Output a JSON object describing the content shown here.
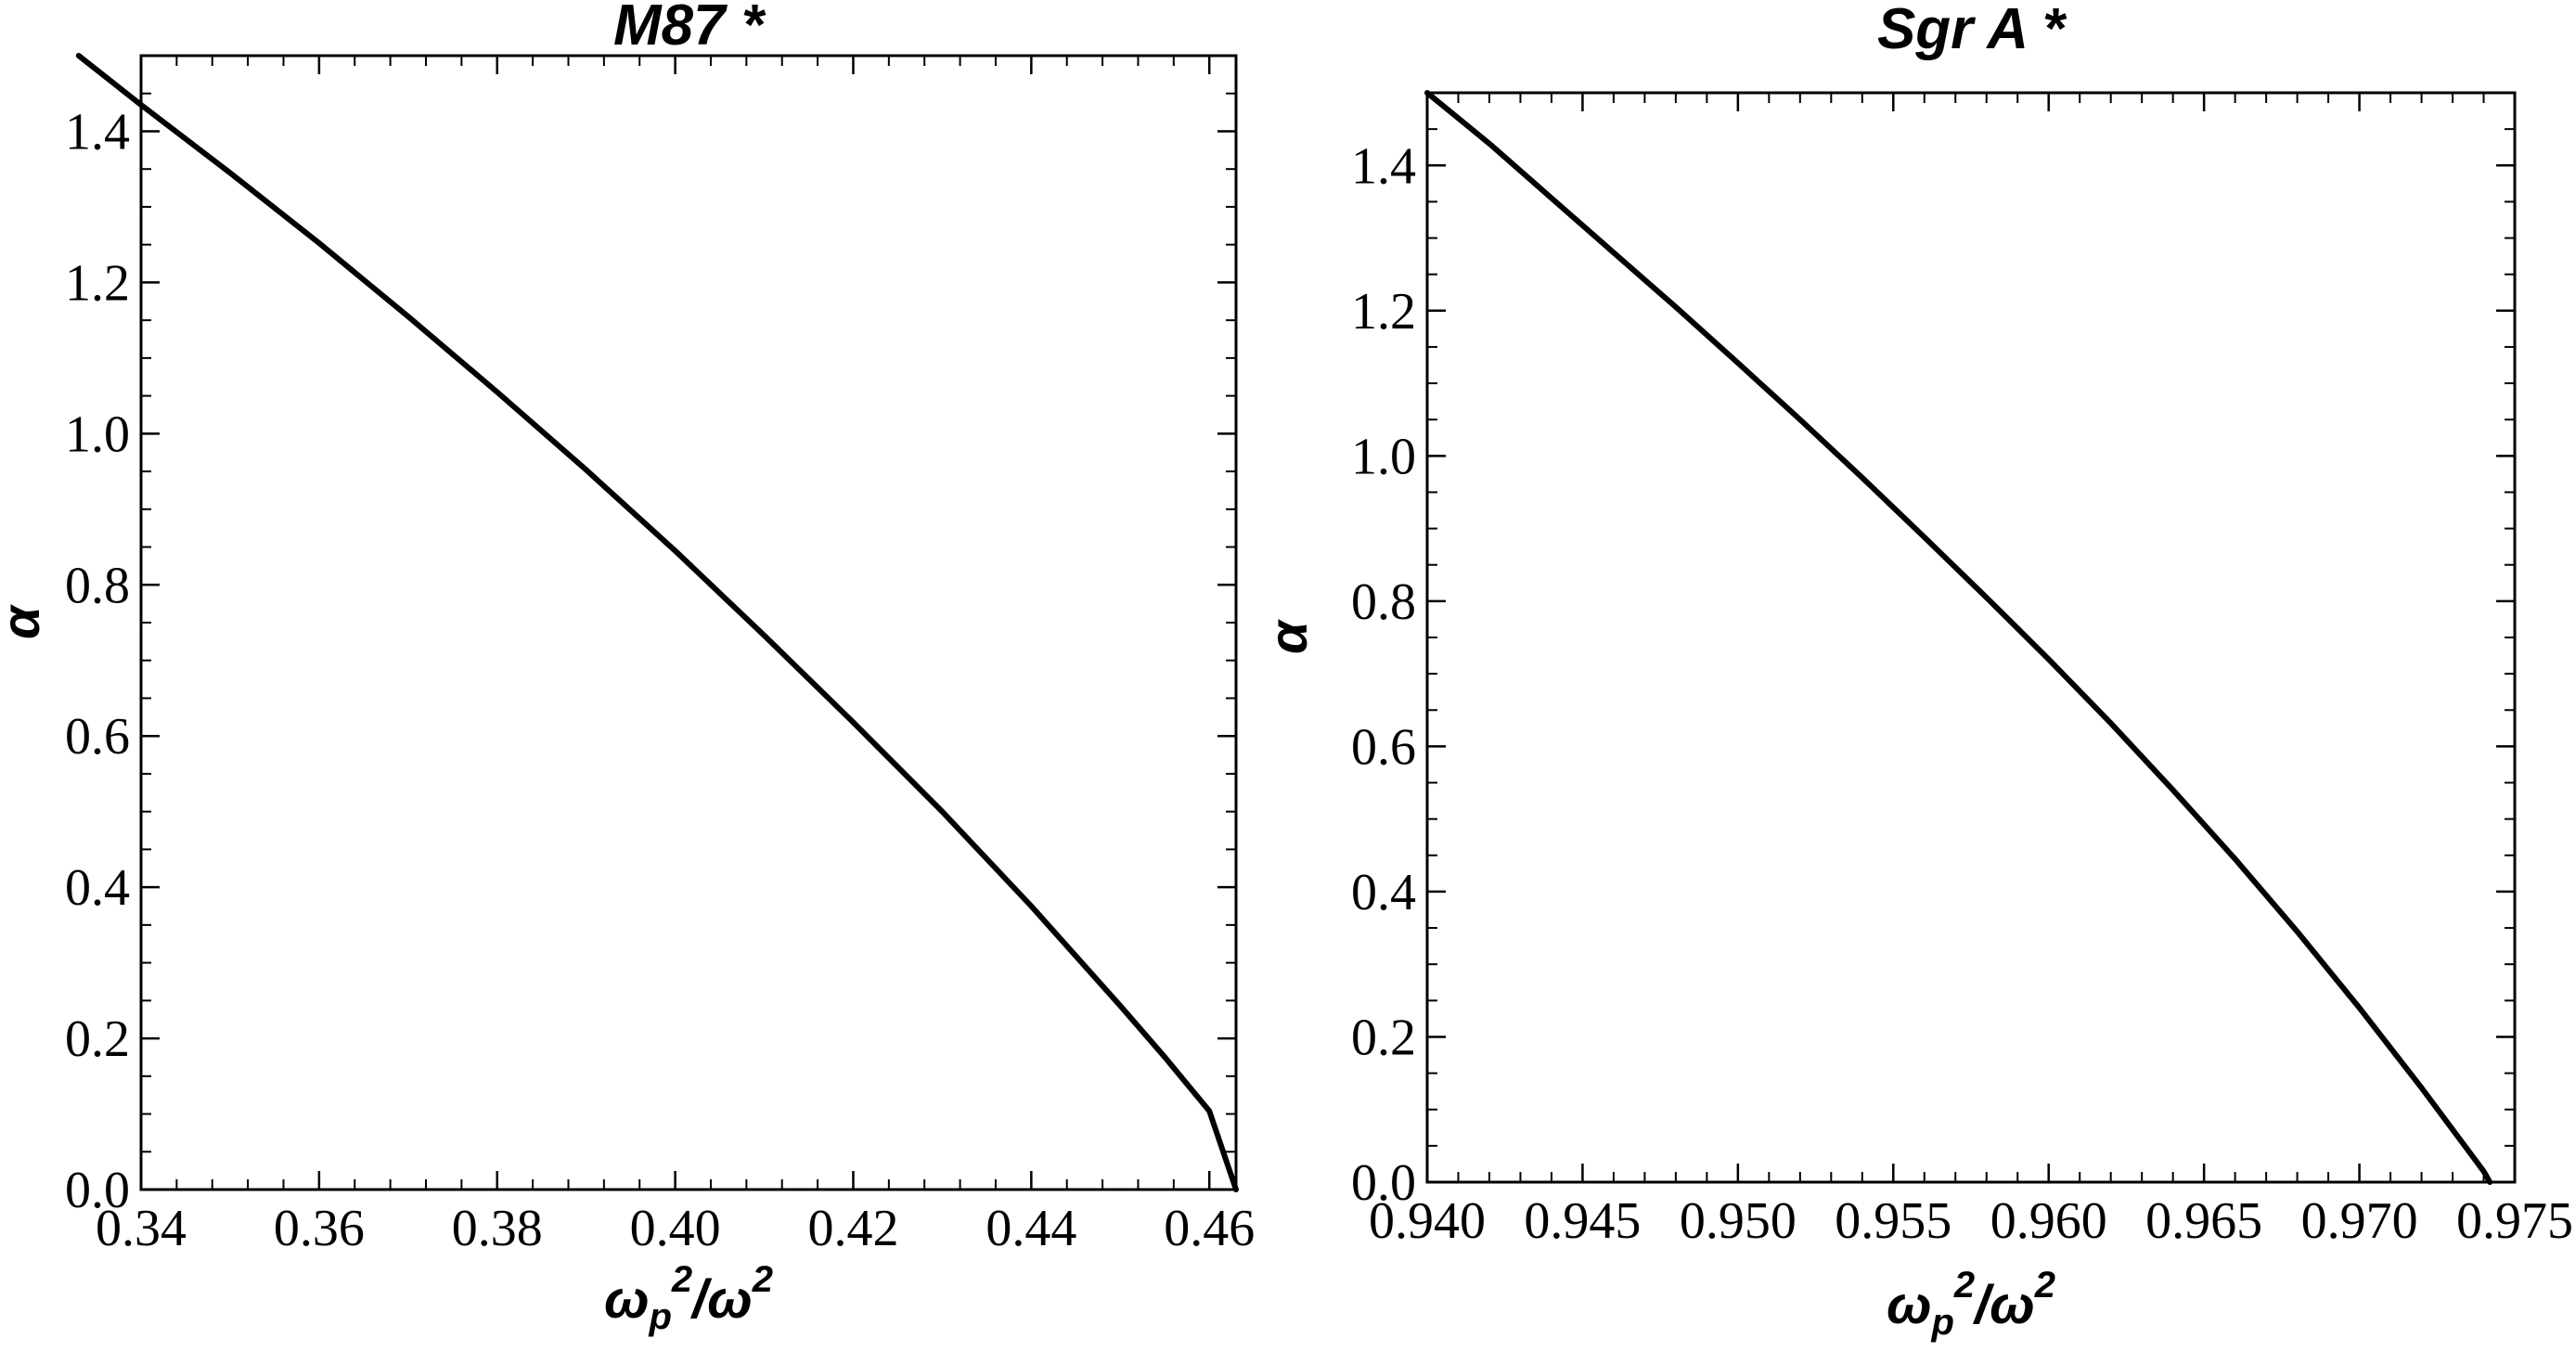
{
  "chart_data": [
    {
      "type": "line",
      "title": "M87 *",
      "xlabel": {
        "base1": "ω",
        "sub1": "p",
        "sup1": "2",
        "slash": "/",
        "base2": "ω",
        "sup2": "2"
      },
      "ylabel": "α",
      "xlim": [
        0.34,
        0.463
      ],
      "ylim": [
        0.0,
        1.5
      ],
      "x_ticks": [
        0.34,
        0.36,
        0.38,
        0.4,
        0.42,
        0.44,
        0.46
      ],
      "x_tick_labels": [
        "0.34",
        "0.36",
        "0.38",
        "0.40",
        "0.42",
        "0.44",
        "0.46"
      ],
      "y_ticks": [
        0.0,
        0.2,
        0.4,
        0.6,
        0.8,
        1.0,
        1.2,
        1.4
      ],
      "y_tick_labels": [
        "0.0",
        "0.2",
        "0.4",
        "0.6",
        "0.8",
        "1.0",
        "1.2",
        "1.4"
      ],
      "series": [
        {
          "name": "alpha",
          "x": [
            0.333,
            0.34,
            0.35,
            0.36,
            0.37,
            0.38,
            0.39,
            0.4,
            0.41,
            0.42,
            0.43,
            0.44,
            0.45,
            0.455,
            0.46,
            0.463
          ],
          "y": [
            1.5,
            1.435,
            1.345,
            1.252,
            1.155,
            1.055,
            0.952,
            0.845,
            0.733,
            0.618,
            0.5,
            0.375,
            0.243,
            0.175,
            0.104,
            0.0
          ]
        }
      ],
      "grid": false,
      "frame": true
    },
    {
      "type": "line",
      "title": "Sgr A *",
      "xlabel": {
        "base1": "ω",
        "sub1": "p",
        "sup1": "2",
        "slash": "/",
        "base2": "ω",
        "sup2": "2"
      },
      "ylabel": "α",
      "xlim": [
        0.94,
        0.975
      ],
      "ylim": [
        0.0,
        1.5
      ],
      "x_ticks": [
        0.94,
        0.945,
        0.95,
        0.955,
        0.96,
        0.965,
        0.97,
        0.975
      ],
      "x_tick_labels": [
        "0.940",
        "0.945",
        "0.950",
        "0.955",
        "0.960",
        "0.965",
        "0.970",
        "0.975"
      ],
      "y_ticks": [
        0.0,
        0.2,
        0.4,
        0.6,
        0.8,
        1.0,
        1.2,
        1.4
      ],
      "y_tick_labels": [
        "0.0",
        "0.2",
        "0.4",
        "0.6",
        "0.8",
        "1.0",
        "1.2",
        "1.4"
      ],
      "series": [
        {
          "name": "alpha",
          "x": [
            0.94,
            0.942,
            0.944,
            0.946,
            0.948,
            0.95,
            0.952,
            0.954,
            0.956,
            0.958,
            0.96,
            0.962,
            0.964,
            0.966,
            0.968,
            0.97,
            0.972,
            0.974,
            0.9742
          ],
          "y": [
            1.5,
            1.43,
            1.355,
            1.28,
            1.205,
            1.128,
            1.05,
            0.97,
            0.888,
            0.805,
            0.72,
            0.632,
            0.54,
            0.445,
            0.345,
            0.24,
            0.13,
            0.015,
            0.0
          ]
        }
      ],
      "grid": false,
      "frame": true
    }
  ]
}
